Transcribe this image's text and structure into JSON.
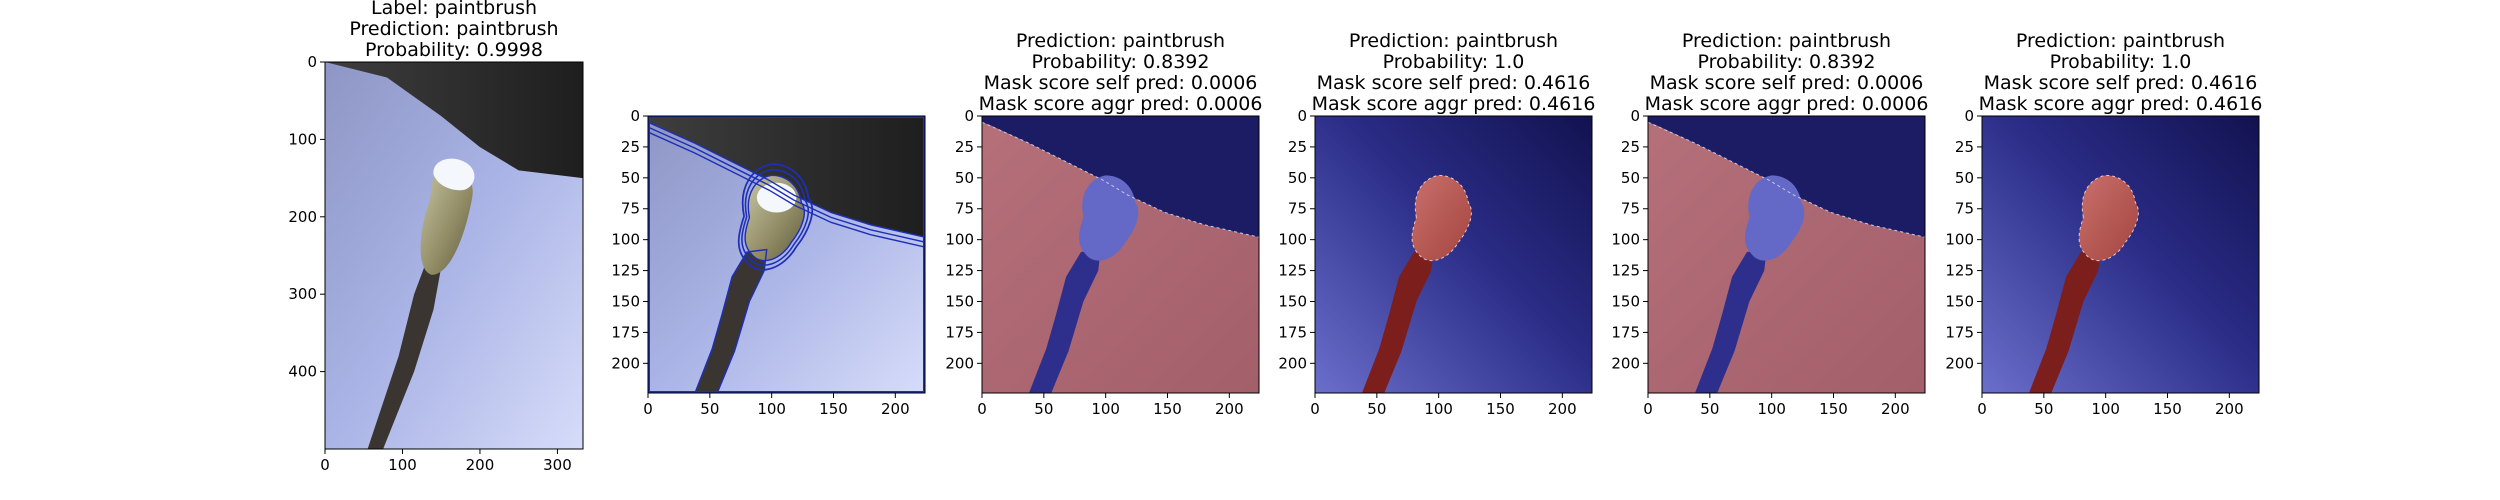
{
  "colors": {
    "sky_light": "#d2d8f8",
    "sky_mid": "#aab4e6",
    "dark_corner": "#2a2a2a",
    "bud_white": "#f4f7fb",
    "catkin": "#a7a484",
    "stem": "#3b3531",
    "contour": "#1f2fb5",
    "overlay_red": "#a9666f",
    "overlay_blue": "#6468c6",
    "overlay_navy": "#18185e",
    "overlay_deep_red": "#7b1e1c"
  },
  "chart_data": [
    {
      "type": "image",
      "panel": "original",
      "title_lines": [
        "Label: paintbrush",
        "Prediction: paintbrush",
        "Probability: 0.9998"
      ],
      "xlim": [
        0,
        333
      ],
      "ylim": [
        500,
        0
      ],
      "x_ticks": [
        0,
        100,
        200,
        300
      ],
      "y_ticks": [
        0,
        100,
        200,
        300,
        400
      ]
    },
    {
      "type": "image",
      "panel": "contours",
      "title_lines": [],
      "xlim": [
        0,
        224
      ],
      "ylim": [
        224,
        0
      ],
      "x_ticks": [
        0,
        50,
        100,
        150,
        200
      ],
      "y_ticks": [
        0,
        25,
        50,
        75,
        100,
        125,
        150,
        175,
        200
      ]
    },
    {
      "type": "image",
      "panel": "mask",
      "title_lines": [
        "Prediction: paintbrush",
        "Probability: 0.8392",
        "Mask score self pred: 0.0006",
        "Mask score aggr pred: 0.0006"
      ],
      "xlim": [
        0,
        224
      ],
      "ylim": [
        224,
        0
      ],
      "x_ticks": [
        0,
        50,
        100,
        150,
        200
      ],
      "y_ticks": [
        0,
        25,
        50,
        75,
        100,
        125,
        150,
        175,
        200
      ]
    },
    {
      "type": "image",
      "panel": "mask",
      "title_lines": [
        "Prediction: paintbrush",
        "Probability: 1.0",
        "Mask score self pred: 0.4616",
        "Mask score aggr pred: 0.4616"
      ],
      "xlim": [
        0,
        224
      ],
      "ylim": [
        224,
        0
      ],
      "x_ticks": [
        0,
        50,
        100,
        150,
        200
      ],
      "y_ticks": [
        0,
        25,
        50,
        75,
        100,
        125,
        150,
        175,
        200
      ]
    },
    {
      "type": "image",
      "panel": "mask",
      "title_lines": [
        "Prediction: paintbrush",
        "Probability: 0.8392",
        "Mask score self pred: 0.0006",
        "Mask score aggr pred: 0.0006"
      ],
      "xlim": [
        0,
        224
      ],
      "ylim": [
        224,
        0
      ],
      "x_ticks": [
        0,
        50,
        100,
        150,
        200
      ],
      "y_ticks": [
        0,
        25,
        50,
        75,
        100,
        125,
        150,
        175,
        200
      ]
    },
    {
      "type": "image",
      "panel": "mask",
      "title_lines": [
        "Prediction: paintbrush",
        "Probability: 1.0",
        "Mask score self pred: 0.4616",
        "Mask score aggr pred: 0.4616"
      ],
      "xlim": [
        0,
        224
      ],
      "ylim": [
        224,
        0
      ],
      "x_ticks": [
        0,
        50,
        100,
        150,
        200
      ],
      "y_ticks": [
        0,
        25,
        50,
        75,
        100,
        125,
        150,
        175,
        200
      ]
    }
  ]
}
